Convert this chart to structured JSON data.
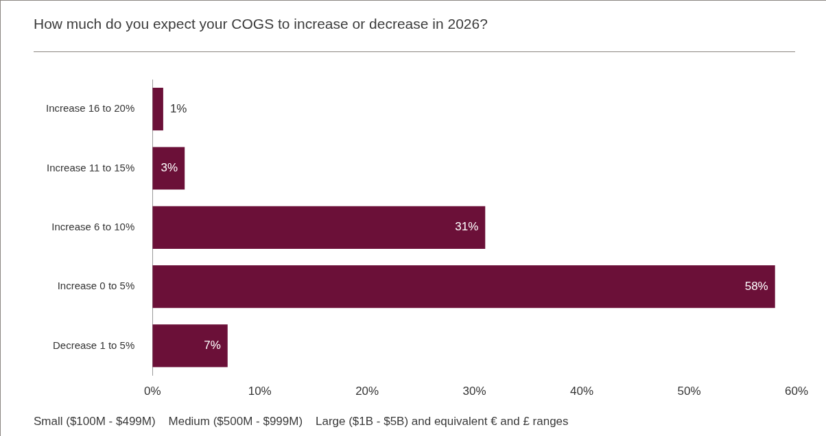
{
  "chart_data": {
    "type": "bar",
    "orientation": "horizontal",
    "title": "How much do you expect your COGS to increase or decrease in 2026?",
    "categories": [
      "Increase 16 to 20%",
      "Increase 11 to 15%",
      "Increase 6 to 10%",
      "Increase 0 to 5%",
      "Decrease 1 to 5%"
    ],
    "values": [
      1,
      3,
      31,
      58,
      7
    ],
    "color": "#6b1038",
    "value_labels": [
      "1%",
      "3%",
      "31%",
      "58%",
      "7%"
    ],
    "xlim": [
      0,
      60
    ],
    "xticks": [
      {
        "value": 0,
        "label": "0%"
      },
      {
        "value": 10,
        "label": "10%"
      },
      {
        "value": 20,
        "label": "20%"
      },
      {
        "value": 30,
        "label": "30%"
      },
      {
        "value": 40,
        "label": "40%"
      },
      {
        "value": 50,
        "label": "50%"
      },
      {
        "value": 60,
        "label": "60%"
      }
    ],
    "grid": false,
    "legend": false,
    "annotations": [
      "Small ($100M - $499M)    Medium ($500M - $999M)    Large ($1B - $5B) and equivalent € and £ ranges"
    ]
  }
}
